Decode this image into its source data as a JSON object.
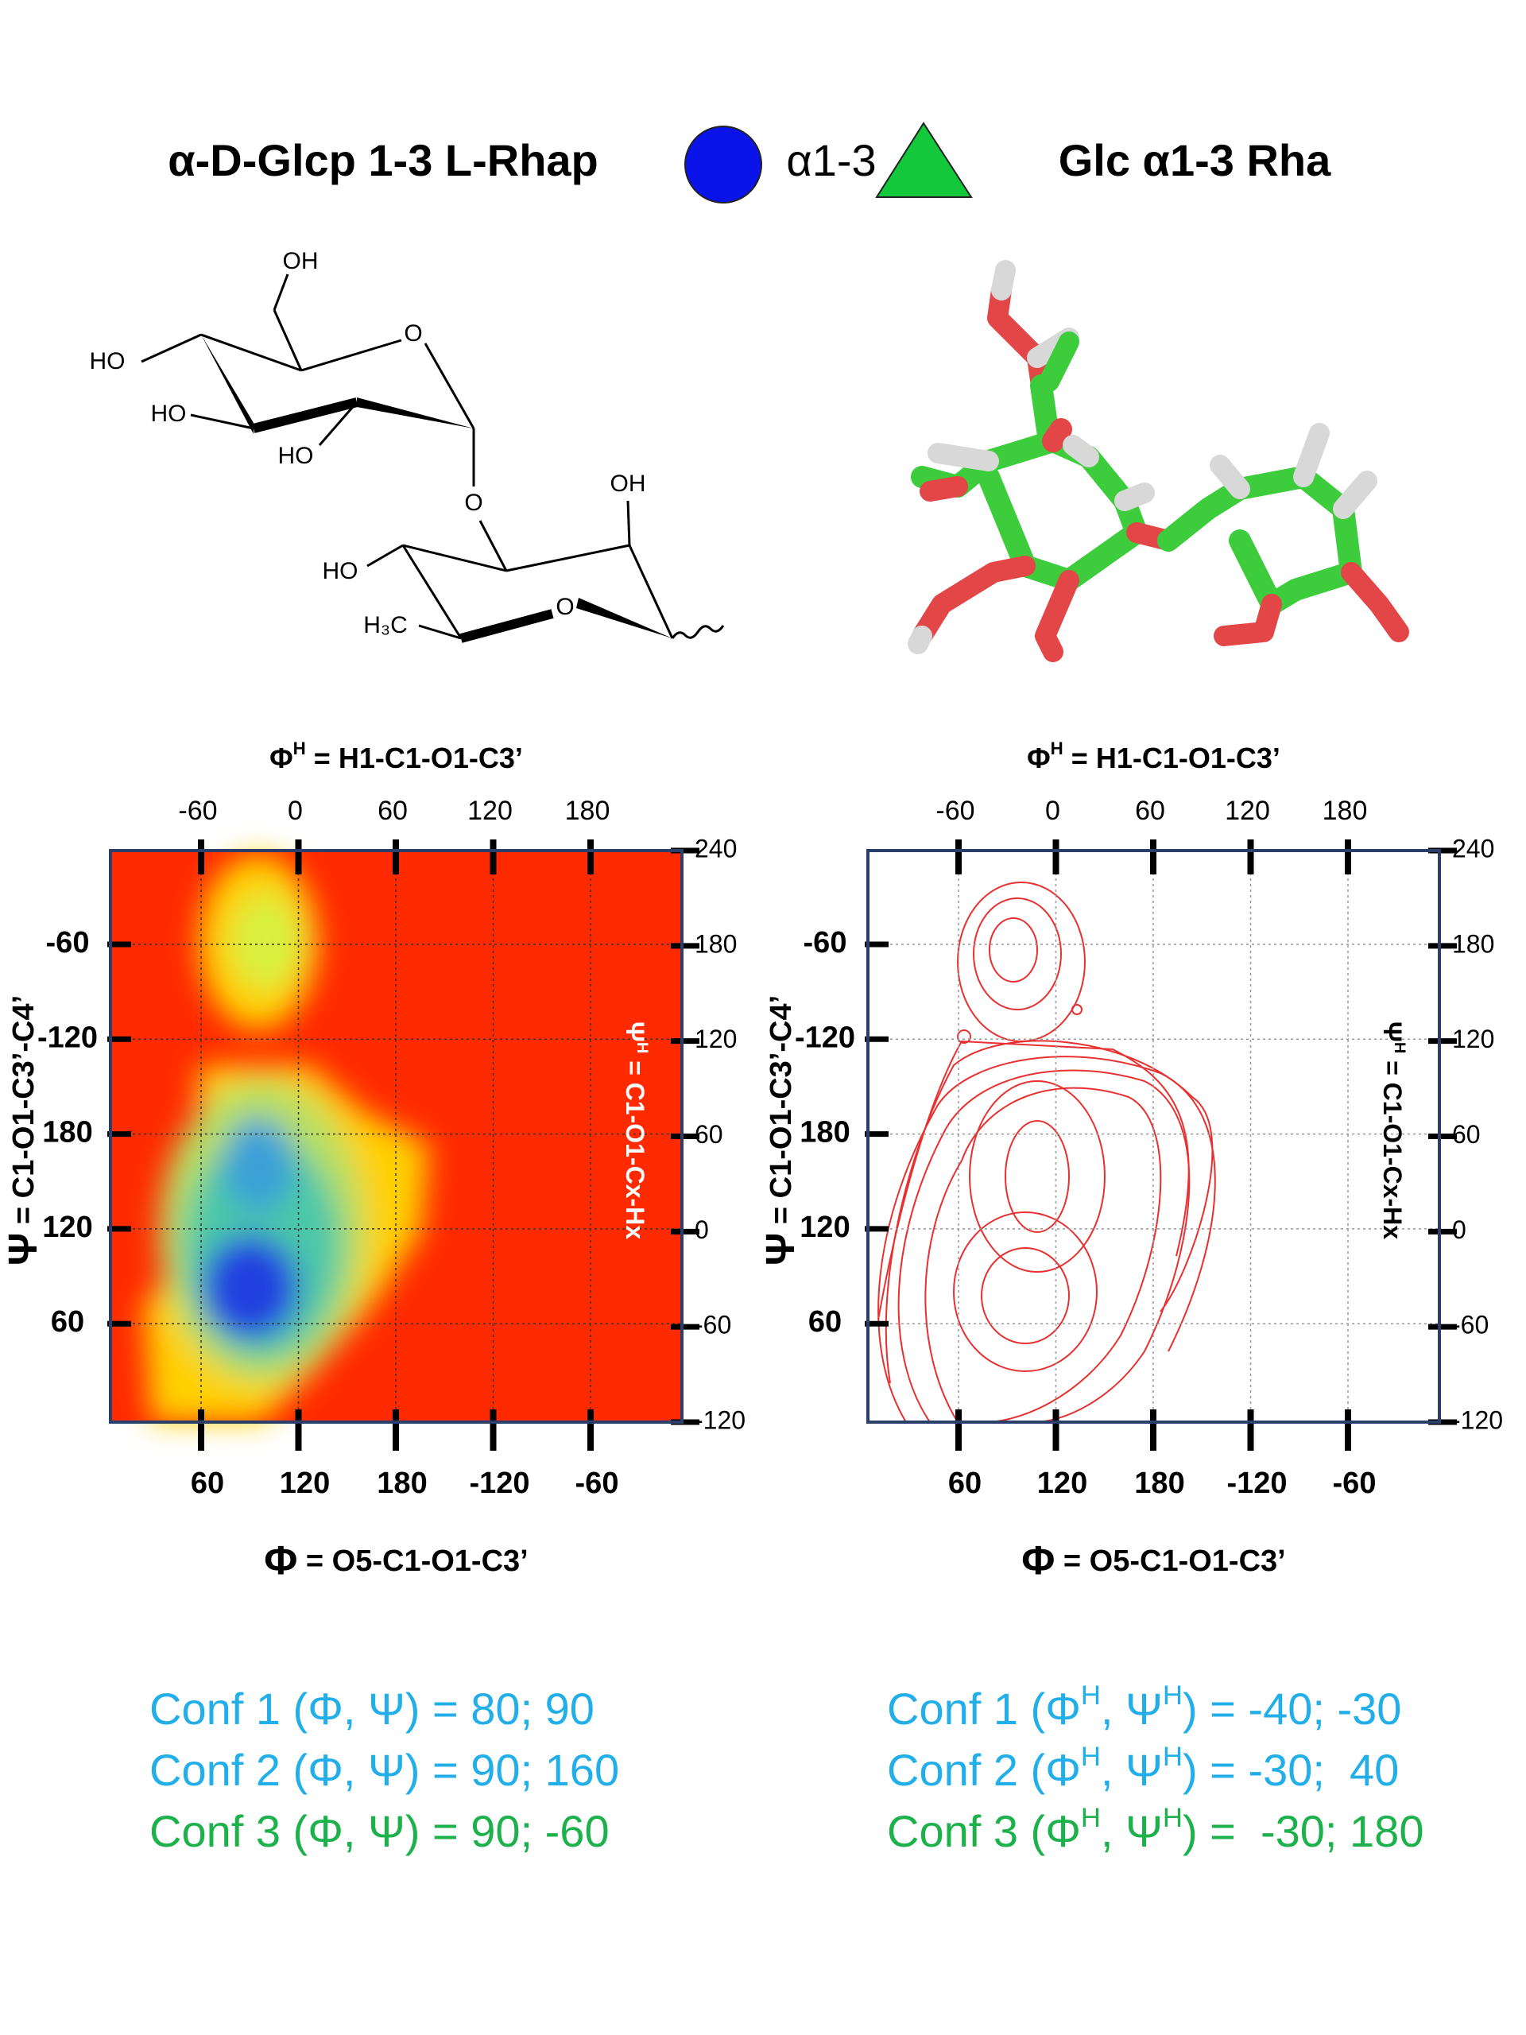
{
  "header": {
    "left_title": "α-D-Glcp 1-3 L-Rhap",
    "linkage": "α1-3",
    "right_title": "Glc α1-3 Rha"
  },
  "structure": {
    "labels": [
      "OH",
      "O",
      "HO",
      "HO",
      "HO",
      "O",
      "OH",
      "HO",
      "O",
      "H₃C"
    ]
  },
  "plots": [
    {
      "top_axis_title": [
        "Φ",
        "H",
        " = H1-C1-O1-C3’"
      ],
      "bottom_axis_title": [
        "Φ",
        " = O5-C1-O1-C3’"
      ],
      "left_axis_title": [
        "Ψ",
        " = C1-O1-C3’-C4’"
      ],
      "right_axis_title": [
        "Ψ",
        "H",
        " = C1-O1-Cx-Hx"
      ],
      "top_ticks": [
        -60,
        0,
        60,
        120,
        180
      ],
      "bottom_ticks": [
        60,
        120,
        180,
        -120,
        -60
      ],
      "left_ticks": [
        -60,
        -120,
        180,
        120,
        60
      ],
      "right_ticks": [
        240,
        180,
        120,
        60,
        0,
        -60,
        -120
      ]
    },
    {
      "top_axis_title": [
        "Φ",
        "H",
        " = H1-C1-O1-C3’"
      ],
      "bottom_axis_title": [
        "Φ",
        " = O5-C1-O1-C3’"
      ],
      "left_axis_title": [
        "Ψ",
        " = C1-O1-C3’-C4’"
      ],
      "right_axis_title": [
        "Ψ",
        "H",
        " = C1-O1-Cx-Hx"
      ],
      "top_ticks": [
        -60,
        0,
        60,
        120,
        180
      ],
      "bottom_ticks": [
        60,
        120,
        180,
        -120,
        -60
      ],
      "left_ticks": [
        -60,
        -120,
        180,
        120,
        60
      ],
      "right_ticks": [
        240,
        180,
        120,
        60,
        0,
        -60,
        -120
      ]
    }
  ],
  "conformations": {
    "left": [
      "Conf 1 (Φ, Ψ) = 80; 90",
      "Conf 2 (Φ, Ψ) = 90; 160",
      "Conf 3 (Φ, Ψ) = 90; -60"
    ],
    "right": [
      [
        "Conf 1 (Φ",
        "H",
        ", Ψ",
        "H",
        ") = -40; -30"
      ],
      [
        "Conf 2 (Φ",
        "H",
        ", Ψ",
        "H",
        ") = -30;  40"
      ],
      [
        "Conf 3 (Φ",
        "H",
        ", Ψ",
        "H",
        ") =  -30; 180"
      ]
    ]
  }
}
